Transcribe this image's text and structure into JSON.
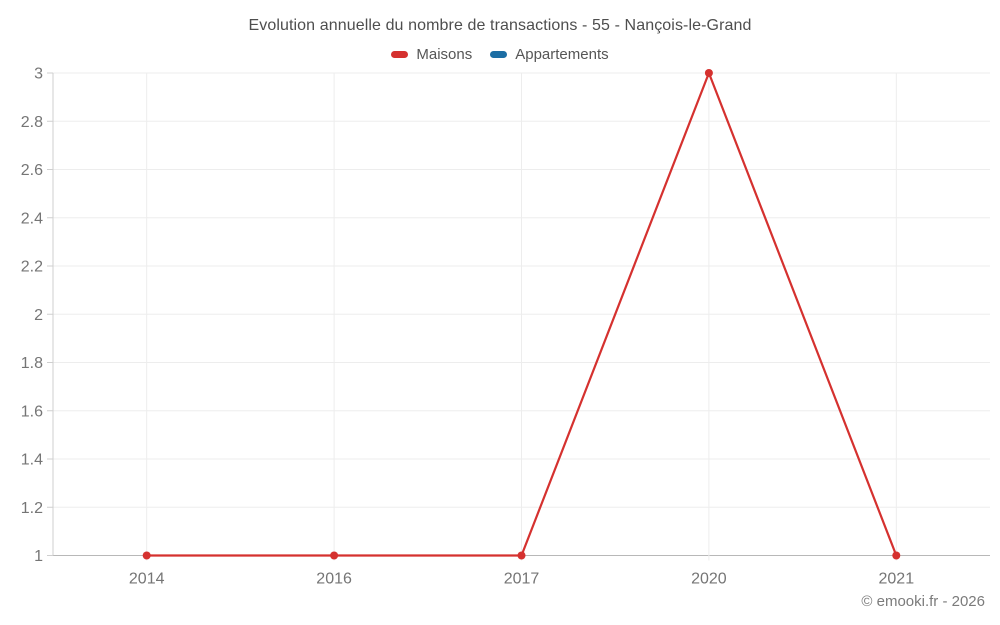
{
  "title": "Evolution annuelle du nombre de transactions - 55 - Nançois-le-Grand",
  "footer": "© emooki.fr - 2026",
  "legend": [
    {
      "label": "Maisons",
      "color": "#d5312f",
      "icon": "red-line-swatch-icon"
    },
    {
      "label": "Appartements",
      "color": "#1c6ea4",
      "icon": "blue-line-swatch-icon"
    }
  ],
  "chart_data": {
    "type": "line",
    "title": "Evolution annuelle du nombre de transactions - 55 - Nançois-le-Grand",
    "xlabel": "",
    "ylabel": "",
    "categories": [
      "2014",
      "2016",
      "2017",
      "2020",
      "2021"
    ],
    "series": [
      {
        "name": "Maisons",
        "color": "#d5312f",
        "values": [
          1,
          1,
          1,
          3,
          1
        ]
      },
      {
        "name": "Appartements",
        "color": "#1c6ea4",
        "values": []
      }
    ],
    "ylim": [
      1,
      3
    ],
    "yticks": [
      1,
      1.2,
      1.4,
      1.6,
      1.8,
      2,
      2.2,
      2.4,
      2.6,
      2.8,
      3
    ],
    "ytick_labels": [
      "1",
      "1.2",
      "1.4",
      "1.6",
      "1.8",
      "2",
      "2.2",
      "2.4",
      "2.6",
      "2.8",
      "3"
    ],
    "grid": true,
    "legend_position": "top"
  }
}
